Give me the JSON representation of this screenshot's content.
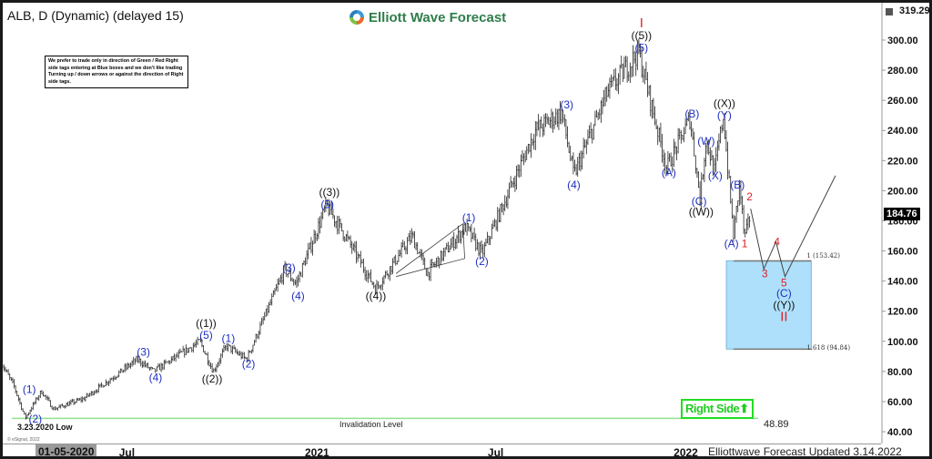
{
  "header": {
    "title": "ALB, D (Dynamic) (delayed 15)",
    "logo_text": "Elliott Wave Forecast",
    "top_price": "319.29",
    "icon": "settings-square-icon"
  },
  "note": "We prefer to trade only in direction of Green / Red Right side tags entering at Blue boxes and we don't like trading Turning up / down arrows or against the direction of Right side tags.",
  "right_side_tag": "Right Side",
  "footer": {
    "updated": "Elliottwave Forecast Updated 3.14.2022",
    "copyright": "© eSignal, 2022",
    "cursor_date": "01-05-2020"
  },
  "colors": {
    "blue_box": "#aee0fb",
    "green_line": "#90e090",
    "wave_blue": "#1e2fc0",
    "wave_red": "#e0202a",
    "wave_black": "#111111",
    "right_side": "#22cc22"
  },
  "chart_data": {
    "type": "ohlc-bar",
    "symbol": "ALB",
    "interval": "D",
    "ylim": [
      30,
      319.29
    ],
    "yticks": [
      "300.00",
      "280.00",
      "260.00",
      "240.00",
      "220.00",
      "200.00",
      "180.00",
      "160.00",
      "140.00",
      "120.00",
      "100.00",
      "80.00",
      "60.00",
      "40.00"
    ],
    "xticks": [
      {
        "label": "Jul",
        "date": "2020-07-01"
      },
      {
        "label": "2021",
        "date": "2021-01-01"
      },
      {
        "label": "Jul",
        "date": "2021-07-01"
      },
      {
        "label": "2022",
        "date": "2022-01-01"
      }
    ],
    "last_price": "184.76",
    "price_path": [
      [
        "2020-02-28",
        86
      ],
      [
        "2020-03-12",
        70
      ],
      [
        "2020-03-23",
        49
      ],
      [
        "2020-04-08",
        67
      ],
      [
        "2020-04-20",
        55
      ],
      [
        "2020-05-20",
        62
      ],
      [
        "2020-07-12",
        88
      ],
      [
        "2020-07-28",
        80
      ],
      [
        "2020-09-12",
        100
      ],
      [
        "2020-09-25",
        80
      ],
      [
        "2020-10-08",
        97
      ],
      [
        "2020-10-28",
        88
      ],
      [
        "2020-12-05",
        148
      ],
      [
        "2020-12-16",
        138
      ],
      [
        "2021-01-15",
        190
      ],
      [
        "2021-02-01",
        172
      ],
      [
        "2021-03-05",
        135
      ],
      [
        "2021-04-10",
        170
      ],
      [
        "2021-04-25",
        145
      ],
      [
        "2021-06-02",
        176
      ],
      [
        "2021-06-18",
        158
      ],
      [
        "2021-08-10",
        240
      ],
      [
        "2021-09-05",
        252
      ],
      [
        "2021-09-17",
        210
      ],
      [
        "2021-10-20",
        265
      ],
      [
        "2021-11-20",
        292
      ],
      [
        "2021-12-01",
        262
      ],
      [
        "2021-12-18",
        215
      ],
      [
        "2022-01-10",
        248
      ],
      [
        "2022-01-20",
        195
      ],
      [
        "2022-01-26",
        235
      ],
      [
        "2022-02-03",
        212
      ],
      [
        "2022-02-12",
        250
      ],
      [
        "2022-02-22",
        170
      ],
      [
        "2022-02-28",
        205
      ],
      [
        "2022-03-05",
        168
      ],
      [
        "2022-03-11",
        184.76
      ]
    ],
    "projection": [
      [
        "2022-03-11",
        188
      ],
      [
        "2022-03-24",
        148
      ],
      [
        "2022-04-05",
        166
      ],
      [
        "2022-04-14",
        143
      ],
      [
        "2022-06-03",
        210
      ]
    ],
    "triangle": [
      [
        "2021-03-25",
        145
      ],
      [
        "2021-05-30",
        178
      ],
      [
        "2021-06-01",
        155
      ]
    ],
    "blue_box": {
      "from": "2022-02-15",
      "to": "2022-05-10",
      "high": 153.42,
      "low": 94.84,
      "label_high": "1 (153.42)",
      "label_low": "1.618 (94.84)"
    },
    "invalidation": {
      "price": 48.89,
      "label": "Invalidation Level",
      "value_label": "48.89"
    },
    "low_label": "3.23.2020 Low",
    "wave_labels": [
      {
        "t": "(1)",
        "c": "blue",
        "d": "2020-03-27",
        "p": 68
      },
      {
        "t": "(2)",
        "c": "blue",
        "d": "2020-04-02",
        "p": 48.5
      },
      {
        "t": "(3)",
        "c": "blue",
        "d": "2020-07-18",
        "p": 93
      },
      {
        "t": "(4)",
        "c": "blue",
        "d": "2020-07-30",
        "p": 76
      },
      {
        "t": "(5)",
        "c": "blue",
        "d": "2020-09-18",
        "p": 104
      },
      {
        "t": "((1))",
        "c": "black",
        "d": "2020-09-18",
        "p": 112
      },
      {
        "t": "((2))",
        "c": "black",
        "d": "2020-09-24",
        "p": 75
      },
      {
        "t": "(1)",
        "c": "blue",
        "d": "2020-10-10",
        "p": 102
      },
      {
        "t": "(2)",
        "c": "blue",
        "d": "2020-10-30",
        "p": 85
      },
      {
        "t": "(3)",
        "c": "blue",
        "d": "2020-12-09",
        "p": 149
      },
      {
        "t": "(4)",
        "c": "blue",
        "d": "2020-12-18",
        "p": 130
      },
      {
        "t": "(5)",
        "c": "blue",
        "d": "2021-01-16",
        "p": 191
      },
      {
        "t": "((3))",
        "c": "black",
        "d": "2021-01-18",
        "p": 199
      },
      {
        "t": "((4))",
        "c": "black",
        "d": "2021-03-05",
        "p": 130
      },
      {
        "t": "(1)",
        "c": "blue",
        "d": "2021-06-05",
        "p": 182
      },
      {
        "t": "(2)",
        "c": "blue",
        "d": "2021-06-18",
        "p": 153
      },
      {
        "t": "(3)",
        "c": "blue",
        "d": "2021-09-10",
        "p": 257
      },
      {
        "t": "(4)",
        "c": "blue",
        "d": "2021-09-17",
        "p": 204
      },
      {
        "t": "(5)",
        "c": "blue",
        "d": "2021-11-23",
        "p": 295
      },
      {
        "t": "((5))",
        "c": "black",
        "d": "2021-11-23",
        "p": 303
      },
      {
        "t": "I",
        "c": "red",
        "d": "2021-11-23",
        "p": 311
      },
      {
        "t": "(A)",
        "c": "blue",
        "d": "2021-12-20",
        "p": 212
      },
      {
        "t": "(B)",
        "c": "blue",
        "d": "2022-01-12",
        "p": 251
      },
      {
        "t": "(W)",
        "c": "blue",
        "d": "2022-01-26",
        "p": 233
      },
      {
        "t": "(X)",
        "c": "blue",
        "d": "2022-02-04",
        "p": 210
      },
      {
        "t": "(C)",
        "c": "blue",
        "d": "2022-01-19",
        "p": 193
      },
      {
        "t": "((W))",
        "c": "black",
        "d": "2022-01-21",
        "p": 186
      },
      {
        "t": "(Y)",
        "c": "blue",
        "d": "2022-02-13",
        "p": 250
      },
      {
        "t": "((X))",
        "c": "black",
        "d": "2022-02-13",
        "p": 258
      },
      {
        "t": "(B)",
        "c": "blue",
        "d": "2022-02-26",
        "p": 204
      },
      {
        "t": "2",
        "c": "red",
        "d": "2022-03-10",
        "p": 196
      },
      {
        "t": "(A)",
        "c": "blue",
        "d": "2022-02-20",
        "p": 165
      },
      {
        "t": "1",
        "c": "red",
        "d": "2022-03-05",
        "p": 165
      },
      {
        "t": "3",
        "c": "red",
        "d": "2022-03-25",
        "p": 145
      },
      {
        "t": "4",
        "c": "red",
        "d": "2022-04-06",
        "p": 166
      },
      {
        "t": "5",
        "c": "red",
        "d": "2022-04-13",
        "p": 139
      },
      {
        "t": "(C)",
        "c": "blue",
        "d": "2022-04-13",
        "p": 132
      },
      {
        "t": "((Y))",
        "c": "black",
        "d": "2022-04-13",
        "p": 124
      },
      {
        "t": "II",
        "c": "red",
        "d": "2022-04-13",
        "p": 116
      }
    ]
  }
}
